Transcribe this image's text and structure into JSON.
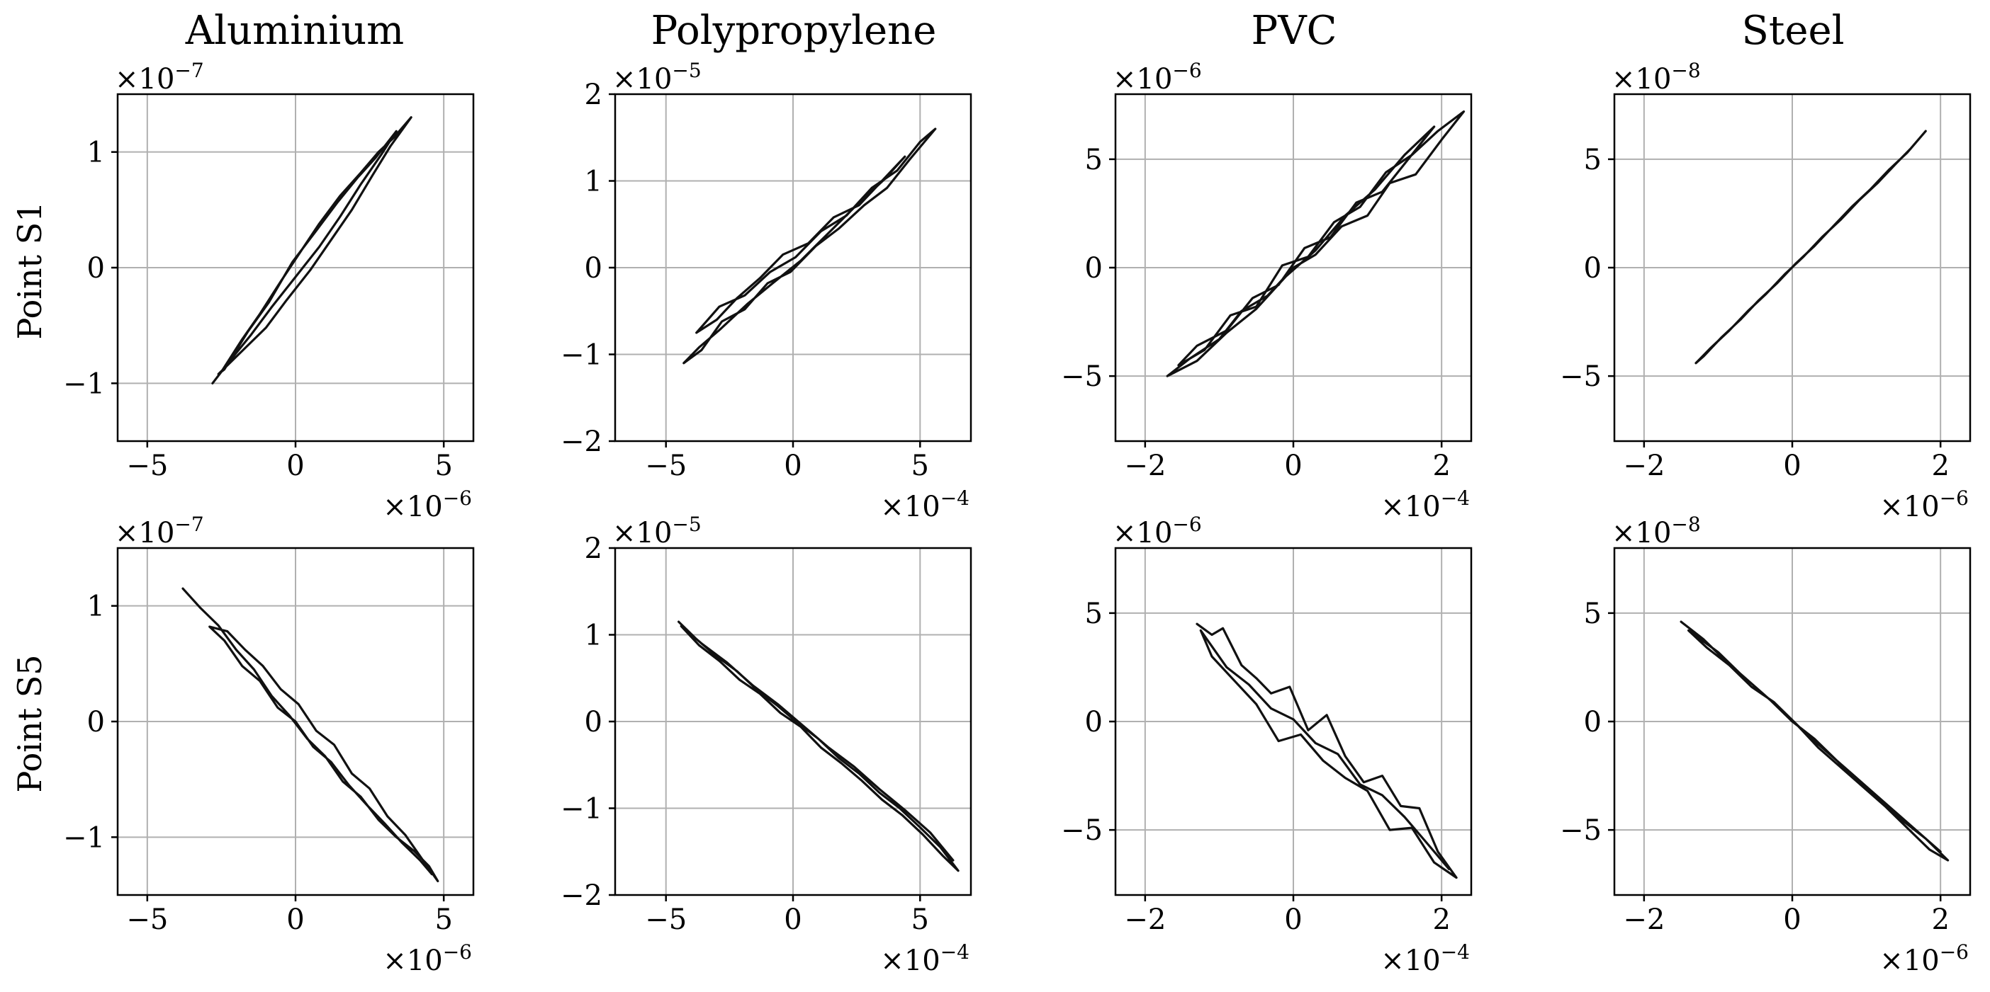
{
  "chart_data": {
    "type": "line",
    "columns": [
      "Aluminium",
      "Polypropylene",
      "PVC",
      "Steel"
    ],
    "rows": [
      "Point S1",
      "Point S5"
    ],
    "grid": true,
    "line_color": "#111111",
    "panels": [
      {
        "column": "Aluminium",
        "row": "Point S1",
        "xlim": [
          -6,
          6
        ],
        "ylim": [
          -1.5,
          1.5
        ],
        "xticks": [
          -5,
          0,
          5
        ],
        "xtick_labels": [
          "−5",
          "0",
          "5"
        ],
        "yticks": [
          -1,
          0,
          1
        ],
        "ytick_labels": [
          "−1",
          "0",
          "1"
        ],
        "x_scale_base": "×10",
        "x_scale_exp": "−6",
        "y_scale_base": "×10",
        "y_scale_exp": "−7",
        "series": [
          {
            "x": [
              -2.8,
              -2.5,
              -1.8,
              -1.2,
              -0.5,
              0.2,
              0.8,
              1.5,
              2.2,
              2.8,
              3.3,
              3.9,
              3.2,
              2.6,
              1.9,
              1.2,
              0.5,
              -0.3,
              -1.0,
              -1.8,
              -2.6,
              -2.4,
              -1.6,
              -0.9,
              -0.1,
              0.7,
              1.4,
              2.1,
              2.7,
              3.4,
              2.9,
              2.2,
              1.5,
              0.8,
              0.0,
              -0.8,
              -1.5,
              -2.2,
              -2.8
            ],
            "y": [
              -1.0,
              -0.9,
              -0.62,
              -0.4,
              -0.12,
              0.15,
              0.38,
              0.62,
              0.82,
              1.0,
              1.12,
              1.3,
              1.05,
              0.8,
              0.5,
              0.24,
              -0.02,
              -0.28,
              -0.52,
              -0.72,
              -0.92,
              -0.88,
              -0.55,
              -0.3,
              0.05,
              0.32,
              0.56,
              0.78,
              0.95,
              1.18,
              0.98,
              0.72,
              0.44,
              0.18,
              -0.08,
              -0.34,
              -0.58,
              -0.8,
              -1.0
            ]
          }
        ]
      },
      {
        "column": "Polypropylene",
        "row": "Point S1",
        "xlim": [
          -7,
          7
        ],
        "ylim": [
          -2,
          2
        ],
        "xticks": [
          -5,
          0,
          5
        ],
        "xtick_labels": [
          "−5",
          "0",
          "5"
        ],
        "yticks": [
          -2,
          -1,
          0,
          1,
          2
        ],
        "ytick_labels": [
          "−2",
          "−1",
          "0",
          "1",
          "2"
        ],
        "x_scale_base": "×10",
        "x_scale_exp": "−4",
        "y_scale_base": "×10",
        "y_scale_exp": "−5",
        "series": [
          {
            "x": [
              -4.3,
              -3.6,
              -2.8,
              -1.9,
              -1.0,
              -0.1,
              0.9,
              1.8,
              2.8,
              3.7,
              4.6,
              5.6,
              5.0,
              4.1,
              3.1,
              2.1,
              1.1,
              0.1,
              -0.9,
              -1.9,
              -2.9,
              -3.8,
              -3.0,
              -2.2,
              -1.3,
              -0.4,
              0.6,
              1.6,
              2.6,
              3.5,
              4.4,
              3.6,
              2.5,
              1.4,
              0.3,
              -0.8,
              -1.8,
              -2.9,
              -3.7,
              -4.3
            ],
            "y": [
              -1.1,
              -0.95,
              -0.62,
              -0.48,
              -0.18,
              -0.05,
              0.25,
              0.45,
              0.72,
              0.92,
              1.25,
              1.6,
              1.45,
              1.12,
              0.92,
              0.6,
              0.42,
              0.12,
              -0.05,
              -0.32,
              -0.45,
              -0.75,
              -0.6,
              -0.35,
              -0.12,
              0.15,
              0.28,
              0.58,
              0.72,
              1.0,
              1.28,
              1.02,
              0.72,
              0.4,
              0.08,
              -0.18,
              -0.42,
              -0.72,
              -0.92,
              -1.1
            ]
          }
        ]
      },
      {
        "column": "PVC",
        "row": "Point S1",
        "xlim": [
          -2.4,
          2.4
        ],
        "ylim": [
          -8,
          8
        ],
        "xticks": [
          -2,
          0,
          2
        ],
        "xtick_labels": [
          "−2",
          "0",
          "2"
        ],
        "yticks": [
          -5,
          0,
          5
        ],
        "ytick_labels": [
          "−5",
          "0",
          "5"
        ],
        "x_scale_base": "×10",
        "x_scale_exp": "−4",
        "y_scale_base": "×10",
        "y_scale_exp": "−6",
        "series": [
          {
            "x": [
              -1.7,
              -1.4,
              -1.0,
              -0.7,
              -0.35,
              0.0,
              0.3,
              0.65,
              1.0,
              1.3,
              1.65,
              2.0,
              2.3,
              1.95,
              1.6,
              1.25,
              0.9,
              0.55,
              0.2,
              -0.15,
              -0.5,
              -0.85,
              -1.2,
              -1.55,
              -1.3,
              -0.9,
              -0.55,
              -0.2,
              0.15,
              0.5,
              0.85,
              1.2,
              1.55,
              1.9,
              1.5,
              1.1,
              0.7,
              0.3,
              -0.1,
              -0.5,
              -0.9,
              -1.3,
              -1.7
            ],
            "y": [
              -5.0,
              -4.2,
              -3.3,
              -2.0,
              -1.3,
              0.0,
              0.6,
              1.9,
              2.4,
              3.9,
              4.3,
              5.9,
              7.2,
              6.3,
              5.2,
              4.4,
              2.8,
              2.1,
              0.5,
              0.1,
              -1.8,
              -2.2,
              -3.8,
              -4.5,
              -3.6,
              -2.9,
              -1.4,
              -0.8,
              0.9,
              1.4,
              3.0,
              3.5,
              5.0,
              6.5,
              5.2,
              3.6,
              2.4,
              0.8,
              -0.4,
              -1.9,
              -3.0,
              -4.3,
              -5.0
            ]
          }
        ]
      },
      {
        "column": "Steel",
        "row": "Point S1",
        "xlim": [
          -2.4,
          2.4
        ],
        "ylim": [
          -8,
          8
        ],
        "xticks": [
          -2,
          0,
          2
        ],
        "xtick_labels": [
          "−2",
          "0",
          "2"
        ],
        "yticks": [
          -5,
          0,
          5
        ],
        "ytick_labels": [
          "−5",
          "0",
          "5"
        ],
        "x_scale_base": "×10",
        "x_scale_exp": "−6",
        "y_scale_base": "×10",
        "y_scale_exp": "−8",
        "series": [
          {
            "x": [
              -1.3,
              -1.1,
              -0.85,
              -0.6,
              -0.35,
              -0.1,
              0.15,
              0.4,
              0.65,
              0.9,
              1.15,
              1.4,
              1.6,
              1.8,
              1.55,
              1.3,
              1.05,
              0.8,
              0.55,
              0.3,
              0.05,
              -0.2,
              -0.45,
              -0.7,
              -0.95,
              -1.2,
              -1.3
            ],
            "y": [
              -4.4,
              -3.7,
              -2.9,
              -2.0,
              -1.2,
              -0.3,
              0.5,
              1.4,
              2.2,
              3.1,
              3.9,
              4.8,
              5.5,
              6.3,
              5.3,
              4.5,
              3.6,
              2.8,
              1.9,
              1.0,
              0.2,
              -0.7,
              -1.5,
              -2.4,
              -3.2,
              -4.1,
              -4.4
            ]
          }
        ]
      },
      {
        "column": "Aluminium",
        "row": "Point S5",
        "xlim": [
          -6,
          6
        ],
        "ylim": [
          -1.5,
          1.5
        ],
        "xticks": [
          -5,
          0,
          5
        ],
        "xtick_labels": [
          "−5",
          "0",
          "5"
        ],
        "yticks": [
          -1,
          0,
          1
        ],
        "ytick_labels": [
          "−1",
          "0",
          "1"
        ],
        "x_scale_base": "×10",
        "x_scale_exp": "−6",
        "y_scale_base": "×10",
        "y_scale_exp": "−7",
        "series": [
          {
            "x": [
              -3.8,
              -3.2,
              -2.6,
              -2.0,
              -1.4,
              -0.8,
              -0.2,
              0.4,
              1.0,
              1.6,
              2.2,
              2.8,
              3.4,
              4.0,
              4.5,
              4.8,
              4.3,
              3.7,
              3.1,
              2.5,
              1.9,
              1.3,
              0.7,
              0.1,
              -0.5,
              -1.1,
              -1.7,
              -2.3,
              -2.9,
              -2.4,
              -1.8,
              -1.2,
              -0.6,
              0.0,
              0.6,
              1.2,
              1.8,
              2.4,
              3.0,
              3.6,
              4.2,
              4.6
            ],
            "y": [
              1.15,
              0.98,
              0.83,
              0.62,
              0.45,
              0.22,
              0.05,
              -0.15,
              -0.3,
              -0.52,
              -0.65,
              -0.85,
              -1.0,
              -1.12,
              -1.25,
              -1.38,
              -1.2,
              -0.98,
              -0.82,
              -0.58,
              -0.45,
              -0.2,
              -0.08,
              0.15,
              0.28,
              0.48,
              0.62,
              0.78,
              0.82,
              0.7,
              0.48,
              0.35,
              0.12,
              0.0,
              -0.22,
              -0.35,
              -0.55,
              -0.72,
              -0.88,
              -1.05,
              -1.2,
              -1.32
            ]
          }
        ]
      },
      {
        "column": "Polypropylene",
        "row": "Point S5",
        "xlim": [
          -7,
          7
        ],
        "ylim": [
          -2,
          2
        ],
        "xticks": [
          -5,
          0,
          5
        ],
        "xtick_labels": [
          "−5",
          "0",
          "5"
        ],
        "yticks": [
          -2,
          -1,
          0,
          1,
          2
        ],
        "ytick_labels": [
          "−2",
          "−1",
          "0",
          "1",
          "2"
        ],
        "x_scale_base": "×10",
        "x_scale_exp": "−4",
        "y_scale_base": "×10",
        "y_scale_exp": "−5",
        "series": [
          {
            "x": [
              -4.5,
              -3.8,
              -3.0,
              -2.2,
              -1.4,
              -0.6,
              0.2,
              1.0,
              1.8,
              2.6,
              3.4,
              4.2,
              5.0,
              5.8,
              6.5,
              5.9,
              5.1,
              4.3,
              3.5,
              2.7,
              1.9,
              1.1,
              0.3,
              -0.5,
              -1.3,
              -2.1,
              -2.9,
              -3.7,
              -4.4,
              -3.6,
              -2.6,
              -1.6,
              -0.6,
              0.4,
              1.4,
              2.4,
              3.4,
              4.4,
              5.4,
              6.3
            ],
            "y": [
              1.15,
              0.95,
              0.75,
              0.58,
              0.36,
              0.18,
              -0.02,
              -0.2,
              -0.42,
              -0.6,
              -0.82,
              -1.0,
              -1.22,
              -1.45,
              -1.72,
              -1.55,
              -1.3,
              -1.08,
              -0.9,
              -0.68,
              -0.48,
              -0.3,
              -0.06,
              0.1,
              0.32,
              0.48,
              0.7,
              0.88,
              1.1,
              0.9,
              0.68,
              0.42,
              0.2,
              -0.05,
              -0.3,
              -0.52,
              -0.78,
              -1.02,
              -1.28,
              -1.6
            ]
          }
        ]
      },
      {
        "column": "PVC",
        "row": "Point S5",
        "xlim": [
          -2.4,
          2.4
        ],
        "ylim": [
          -8,
          8
        ],
        "xticks": [
          -2,
          0,
          2
        ],
        "xtick_labels": [
          "−2",
          "0",
          "2"
        ],
        "yticks": [
          -5,
          0,
          5
        ],
        "ytick_labels": [
          "−5",
          "0",
          "5"
        ],
        "x_scale_base": "×10",
        "x_scale_exp": "−4",
        "y_scale_base": "×10",
        "y_scale_exp": "−6",
        "series": [
          {
            "x": [
              -1.3,
              -1.1,
              -0.95,
              -0.7,
              -0.5,
              -0.3,
              -0.05,
              0.2,
              0.45,
              0.7,
              0.95,
              1.2,
              1.45,
              1.7,
              1.95,
              2.2,
              1.9,
              1.6,
              1.3,
              1.0,
              0.7,
              0.4,
              0.1,
              -0.2,
              -0.5,
              -0.8,
              -1.1,
              -1.25,
              -0.9,
              -0.6,
              -0.3,
              0.0,
              0.3,
              0.6,
              0.9,
              1.2,
              1.5,
              1.8,
              2.1
            ],
            "y": [
              4.5,
              4.0,
              4.3,
              2.6,
              2.0,
              1.3,
              1.6,
              -0.4,
              0.3,
              -1.6,
              -2.8,
              -2.5,
              -3.9,
              -4.0,
              -6.0,
              -7.2,
              -6.5,
              -4.9,
              -5.0,
              -3.2,
              -2.6,
              -1.8,
              -0.6,
              -0.9,
              0.8,
              1.9,
              3.0,
              4.2,
              2.5,
              1.7,
              0.6,
              0.1,
              -1.0,
              -1.5,
              -2.9,
              -3.4,
              -4.4,
              -5.6,
              -6.8
            ]
          }
        ]
      },
      {
        "column": "Steel",
        "row": "Point S5",
        "xlim": [
          -2.4,
          2.4
        ],
        "ylim": [
          -8,
          8
        ],
        "xticks": [
          -2,
          0,
          2
        ],
        "xtick_labels": [
          "−2",
          "0",
          "2"
        ],
        "yticks": [
          -5,
          0,
          5
        ],
        "ytick_labels": [
          "−5",
          "0",
          "5"
        ],
        "x_scale_base": "×10",
        "x_scale_exp": "−6",
        "y_scale_base": "×10",
        "y_scale_exp": "−8",
        "series": [
          {
            "x": [
              -1.5,
              -1.2,
              -0.9,
              -0.6,
              -0.3,
              0.0,
              0.3,
              0.6,
              0.9,
              1.2,
              1.5,
              1.8,
              2.1,
              1.85,
              1.55,
              1.25,
              0.95,
              0.65,
              0.35,
              0.05,
              -0.25,
              -0.55,
              -0.85,
              -1.15,
              -1.4,
              -1.0,
              -0.7,
              -0.4,
              -0.1,
              0.2,
              0.5,
              0.8,
              1.1,
              1.4,
              1.7,
              2.0
            ],
            "y": [
              4.6,
              3.8,
              2.8,
              1.9,
              1.0,
              0.0,
              -0.8,
              -1.8,
              -2.8,
              -3.7,
              -4.6,
              -5.4,
              -6.4,
              -5.9,
              -4.9,
              -3.9,
              -3.0,
              -2.1,
              -1.2,
              -0.1,
              0.9,
              1.6,
              2.6,
              3.4,
              4.2,
              3.2,
              2.2,
              1.3,
              0.4,
              -0.6,
              -1.5,
              -2.4,
              -3.3,
              -4.2,
              -5.1,
              -6.0
            ]
          }
        ]
      }
    ]
  }
}
